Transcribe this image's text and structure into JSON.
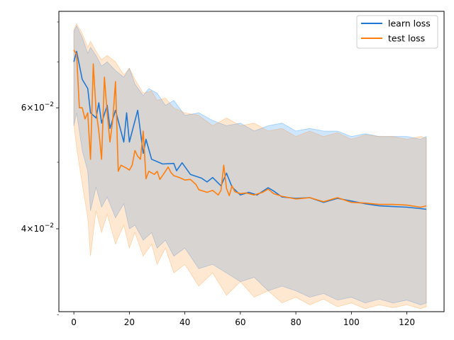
{
  "chart_data": {
    "type": "line",
    "title": "",
    "xlabel": "",
    "ylabel": "",
    "xlim": [
      -5.4,
      133.4
    ],
    "ylim": [
      0.0303,
      0.0829
    ],
    "yscale": "log",
    "grid": false,
    "legend_position": "top-right",
    "x_ticks": [
      0,
      20,
      40,
      60,
      80,
      100,
      120
    ],
    "x_tick_labels": [
      "0",
      "20",
      "40",
      "60",
      "80",
      "100",
      "120"
    ],
    "y_major_ticks": [
      {
        "value": 0.04,
        "mantissa": "4",
        "base": "10",
        "exponent": "−2"
      },
      {
        "value": 0.06,
        "mantissa": "6",
        "base": "10",
        "exponent": "−2"
      }
    ],
    "y_minor_ticks": [
      0.03,
      0.05,
      0.07,
      0.08
    ],
    "series": [
      {
        "name": "learn loss",
        "color": "#1f77d4",
        "band_color": "#1f8bff",
        "band_opacity": 0.22,
        "points": [
          [
            0,
            0.07
          ],
          [
            1,
            0.0725
          ],
          [
            3,
            0.066
          ],
          [
            5,
            0.064
          ],
          [
            6,
            0.059
          ],
          [
            8,
            0.058
          ],
          [
            9,
            0.061
          ],
          [
            10,
            0.057
          ],
          [
            12,
            0.0605
          ],
          [
            13,
            0.056
          ],
          [
            15,
            0.0595
          ],
          [
            18,
            0.0535
          ],
          [
            19,
            0.059
          ],
          [
            20,
            0.0535
          ],
          [
            23,
            0.0595
          ],
          [
            25,
            0.0515
          ],
          [
            26,
            0.054
          ],
          [
            28,
            0.0505
          ],
          [
            32,
            0.0497
          ],
          [
            36,
            0.0498
          ],
          [
            37,
            0.0486
          ],
          [
            39,
            0.0499
          ],
          [
            42,
            0.048
          ],
          [
            46,
            0.0474
          ],
          [
            48,
            0.0468
          ],
          [
            50,
            0.0475
          ],
          [
            53,
            0.0462
          ],
          [
            55,
            0.0482
          ],
          [
            57,
            0.046
          ],
          [
            60,
            0.0448
          ],
          [
            63,
            0.0452
          ],
          [
            66,
            0.0448
          ],
          [
            70,
            0.0459
          ],
          [
            72,
            0.0454
          ],
          [
            75,
            0.0445
          ],
          [
            80,
            0.0443
          ],
          [
            85,
            0.0444
          ],
          [
            90,
            0.0437
          ],
          [
            95,
            0.0443
          ],
          [
            100,
            0.0439
          ],
          [
            105,
            0.0435
          ],
          [
            110,
            0.0432
          ],
          [
            115,
            0.0431
          ],
          [
            120,
            0.043
          ],
          [
            125,
            0.0428
          ],
          [
            127,
            0.0427
          ]
        ],
        "upper": [
          [
            0,
            0.0775
          ],
          [
            1,
            0.079
          ],
          [
            3,
            0.076
          ],
          [
            5,
            0.072
          ],
          [
            6,
            0.0735
          ],
          [
            8,
            0.0715
          ],
          [
            10,
            0.069
          ],
          [
            12,
            0.07
          ],
          [
            15,
            0.068
          ],
          [
            18,
            0.0665
          ],
          [
            20,
            0.0685
          ],
          [
            22,
            0.065
          ],
          [
            25,
            0.0625
          ],
          [
            27,
            0.064
          ],
          [
            30,
            0.063
          ],
          [
            33,
            0.0605
          ],
          [
            36,
            0.0615
          ],
          [
            40,
            0.0585
          ],
          [
            45,
            0.059
          ],
          [
            50,
            0.0575
          ],
          [
            55,
            0.0565
          ],
          [
            60,
            0.057
          ],
          [
            65,
            0.0555
          ],
          [
            70,
            0.0565
          ],
          [
            75,
            0.057
          ],
          [
            80,
            0.0555
          ],
          [
            85,
            0.056
          ],
          [
            90,
            0.0555
          ],
          [
            95,
            0.0555
          ],
          [
            100,
            0.0545
          ],
          [
            105,
            0.055
          ],
          [
            110,
            0.0545
          ],
          [
            115,
            0.0545
          ],
          [
            120,
            0.0545
          ],
          [
            125,
            0.054
          ],
          [
            127,
            0.0545
          ]
        ],
        "lower": [
          [
            0,
            0.0565
          ],
          [
            1,
            0.059
          ],
          [
            3,
            0.052
          ],
          [
            5,
            0.0485
          ],
          [
            6,
            0.0425
          ],
          [
            8,
            0.046
          ],
          [
            10,
            0.043
          ],
          [
            12,
            0.0445
          ],
          [
            15,
            0.0415
          ],
          [
            18,
            0.0435
          ],
          [
            20,
            0.04
          ],
          [
            22,
            0.0405
          ],
          [
            25,
            0.0385
          ],
          [
            28,
            0.0395
          ],
          [
            30,
            0.0375
          ],
          [
            33,
            0.0385
          ],
          [
            36,
            0.0365
          ],
          [
            40,
            0.0375
          ],
          [
            45,
            0.035
          ],
          [
            50,
            0.0355
          ],
          [
            55,
            0.0345
          ],
          [
            60,
            0.0335
          ],
          [
            65,
            0.034
          ],
          [
            70,
            0.0325
          ],
          [
            75,
            0.033
          ],
          [
            80,
            0.0325
          ],
          [
            85,
            0.0318
          ],
          [
            90,
            0.0322
          ],
          [
            95,
            0.0315
          ],
          [
            100,
            0.0318
          ],
          [
            105,
            0.0312
          ],
          [
            110,
            0.0316
          ],
          [
            115,
            0.0312
          ],
          [
            120,
            0.0315
          ],
          [
            125,
            0.031
          ],
          [
            127,
            0.0312
          ]
        ]
      },
      {
        "name": "test loss",
        "color": "#ff7f0e",
        "band_color": "#ff9530",
        "band_opacity": 0.22,
        "points": [
          [
            0,
            0.0728
          ],
          [
            1,
            0.0718
          ],
          [
            2,
            0.06
          ],
          [
            3,
            0.06
          ],
          [
            4,
            0.0578
          ],
          [
            5,
            0.059
          ],
          [
            6,
            0.0505
          ],
          [
            7,
            0.0695
          ],
          [
            8,
            0.0595
          ],
          [
            9,
            0.0555
          ],
          [
            10,
            0.0505
          ],
          [
            11,
            0.0665
          ],
          [
            12,
            0.059
          ],
          [
            13,
            0.0535
          ],
          [
            14,
            0.0575
          ],
          [
            15,
            0.0655
          ],
          [
            16,
            0.0485
          ],
          [
            17,
            0.0495
          ],
          [
            19,
            0.049
          ],
          [
            20,
            0.0487
          ],
          [
            21,
            0.0495
          ],
          [
            22,
            0.052
          ],
          [
            23,
            0.051
          ],
          [
            24,
            0.0505
          ],
          [
            25,
            0.0555
          ],
          [
            26,
            0.0473
          ],
          [
            27,
            0.0485
          ],
          [
            29,
            0.048
          ],
          [
            30,
            0.0485
          ],
          [
            31,
            0.0472
          ],
          [
            33,
            0.0485
          ],
          [
            34,
            0.0492
          ],
          [
            35,
            0.0483
          ],
          [
            36,
            0.0478
          ],
          [
            38,
            0.0475
          ],
          [
            40,
            0.0471
          ],
          [
            42,
            0.0472
          ],
          [
            44,
            0.0464
          ],
          [
            45,
            0.0456
          ],
          [
            48,
            0.0452
          ],
          [
            50,
            0.0455
          ],
          [
            52,
            0.0448
          ],
          [
            53,
            0.0455
          ],
          [
            54,
            0.0495
          ],
          [
            55,
            0.0458
          ],
          [
            56,
            0.0447
          ],
          [
            57,
            0.0462
          ],
          [
            58,
            0.0453
          ],
          [
            60,
            0.045
          ],
          [
            62,
            0.0451
          ],
          [
            65,
            0.0448
          ],
          [
            68,
            0.0452
          ],
          [
            70,
            0.0457
          ],
          [
            72,
            0.045
          ],
          [
            75,
            0.0446
          ],
          [
            80,
            0.0442
          ],
          [
            85,
            0.0444
          ],
          [
            90,
            0.0438
          ],
          [
            95,
            0.0444
          ],
          [
            100,
            0.0437
          ],
          [
            105,
            0.0436
          ],
          [
            110,
            0.0434
          ],
          [
            115,
            0.0434
          ],
          [
            120,
            0.0433
          ],
          [
            125,
            0.043
          ],
          [
            127,
            0.0432
          ]
        ],
        "upper": [
          [
            0,
            0.078
          ],
          [
            1,
            0.0795
          ],
          [
            3,
            0.077
          ],
          [
            5,
            0.0735
          ],
          [
            6,
            0.075
          ],
          [
            8,
            0.0725
          ],
          [
            10,
            0.0705
          ],
          [
            12,
            0.0715
          ],
          [
            15,
            0.07
          ],
          [
            18,
            0.067
          ],
          [
            20,
            0.0685
          ],
          [
            22,
            0.066
          ],
          [
            25,
            0.063
          ],
          [
            28,
            0.0635
          ],
          [
            30,
            0.0615
          ],
          [
            33,
            0.062
          ],
          [
            36,
            0.06
          ],
          [
            40,
            0.059
          ],
          [
            45,
            0.0585
          ],
          [
            50,
            0.0565
          ],
          [
            55,
            0.058
          ],
          [
            60,
            0.0565
          ],
          [
            65,
            0.057
          ],
          [
            70,
            0.0555
          ],
          [
            75,
            0.056
          ],
          [
            80,
            0.0545
          ],
          [
            85,
            0.0555
          ],
          [
            90,
            0.0545
          ],
          [
            95,
            0.0552
          ],
          [
            100,
            0.054
          ],
          [
            105,
            0.0548
          ],
          [
            110,
            0.0545
          ],
          [
            115,
            0.0545
          ],
          [
            120,
            0.054
          ],
          [
            125,
            0.0545
          ],
          [
            127,
            0.0542
          ]
        ],
        "lower": [
          [
            0,
            0.0568
          ],
          [
            1,
            0.0525
          ],
          [
            3,
            0.0465
          ],
          [
            5,
            0.0415
          ],
          [
            6,
            0.0365
          ],
          [
            8,
            0.0425
          ],
          [
            10,
            0.0395
          ],
          [
            12,
            0.042
          ],
          [
            15,
            0.038
          ],
          [
            18,
            0.0405
          ],
          [
            20,
            0.0375
          ],
          [
            22,
            0.0395
          ],
          [
            25,
            0.0365
          ],
          [
            28,
            0.038
          ],
          [
            30,
            0.0355
          ],
          [
            33,
            0.0375
          ],
          [
            36,
            0.0345
          ],
          [
            40,
            0.0355
          ],
          [
            45,
            0.033
          ],
          [
            50,
            0.0345
          ],
          [
            55,
            0.032
          ],
          [
            60,
            0.0335
          ],
          [
            65,
            0.0318
          ],
          [
            70,
            0.0325
          ],
          [
            75,
            0.0312
          ],
          [
            80,
            0.0318
          ],
          [
            85,
            0.031
          ],
          [
            90,
            0.0316
          ],
          [
            95,
            0.0308
          ],
          [
            100,
            0.0312
          ],
          [
            105,
            0.0306
          ],
          [
            110,
            0.031
          ],
          [
            115,
            0.0307
          ],
          [
            120,
            0.031
          ],
          [
            125,
            0.0306
          ],
          [
            127,
            0.0308
          ]
        ]
      }
    ]
  }
}
